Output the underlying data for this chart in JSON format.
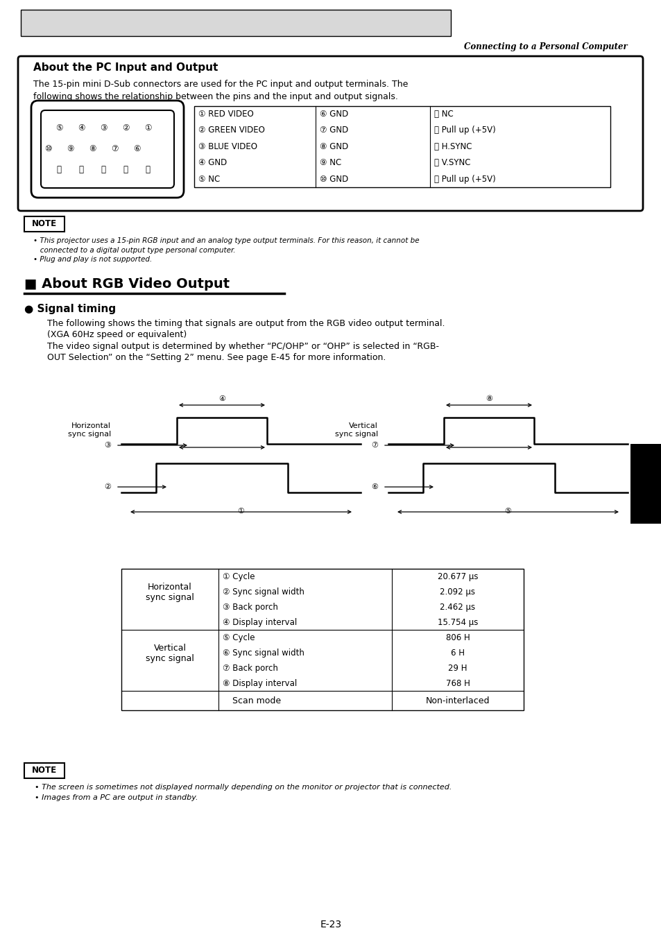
{
  "page_title_italic": "Connecting to a Personal Computer",
  "section1_title": "About the PC Input and Output",
  "section1_body_l1": "The 15-pin mini D-Sub connectors are used for the PC input and output terminals. The",
  "section1_body_l2": "following shows the relationship between the pins and the input and output signals.",
  "pin_table": [
    [
      "① RED VIDEO",
      "⑥ GND",
      "⑪ NC"
    ],
    [
      "② GREEN VIDEO",
      "⑦ GND",
      "⑫ Pull up (+5V)"
    ],
    [
      "③ BLUE VIDEO",
      "⑧ GND",
      "⑬ H.SYNC"
    ],
    [
      "④ GND",
      "⑨ NC",
      "⑭ V.SYNC"
    ],
    [
      "⑤ NC",
      "⑩ GND",
      "⑮ Pull up (+5V)"
    ]
  ],
  "note1_lines": [
    "• This projector uses a 15-pin RGB input and an analog type output terminals. For this reason, it cannot be",
    "   connected to a digital output type personal computer.",
    "• Plug and play is not supported."
  ],
  "section2_title": "■ About RGB Video Output",
  "section3_title": "● Signal timing",
  "signal_body_l1": "The following shows the timing that signals are output from the RGB video output terminal.",
  "signal_body_l2": "(XGA 60Hz speed or equivalent)",
  "signal_body_l3": "The video signal output is determined by whether “PC/OHP” or “OHP” is selected in “RGB-",
  "signal_body_l4": "OUT Selection” on the “Setting 2” menu. See page E-45 for more information.",
  "timing_table_h_rows": [
    [
      "① Cycle",
      "20.677 μs"
    ],
    [
      "② Sync signal width",
      "2.092 μs"
    ],
    [
      "③ Back porch",
      "2.462 μs"
    ],
    [
      "④ Display interval",
      "15.754 μs"
    ]
  ],
  "timing_table_v_rows": [
    [
      "⑤ Cycle",
      "806 H"
    ],
    [
      "⑥ Sync signal width",
      "6 H"
    ],
    [
      "⑦ Back porch",
      "29 H"
    ],
    [
      "⑧ Display interval",
      "768 H"
    ]
  ],
  "scan_label": "Scan mode",
  "scan_value": "Non-interlaced",
  "note2_lines": [
    "• The screen is sometimes not displayed normally depending on the monitor or projector that is connected.",
    "• Images from a PC are output in standby."
  ],
  "page_number": "E-23"
}
